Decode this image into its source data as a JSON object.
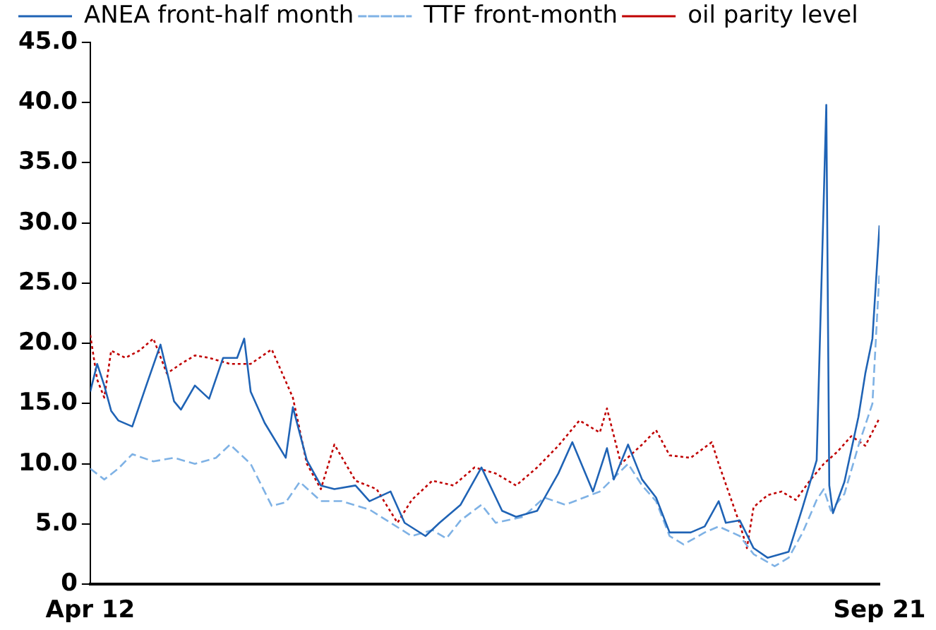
{
  "chart_data": {
    "type": "line",
    "xlim": [
      "2012-04",
      "2021-09"
    ],
    "xticks": [
      {
        "value": "2012-04",
        "label": "Apr 12"
      },
      {
        "value": "2021-09",
        "label": "Sep 21"
      }
    ],
    "ylim": [
      0,
      45
    ],
    "yticks": [
      0,
      {
        "value": 5,
        "label": "5.0"
      },
      {
        "value": 10,
        "label": "10.0"
      },
      {
        "value": 15,
        "label": "15.0"
      },
      {
        "value": 20,
        "label": "20.0"
      },
      {
        "value": 25,
        "label": "25.0"
      },
      {
        "value": 30,
        "label": "30.0"
      },
      {
        "value": 35,
        "label": "35.0"
      },
      {
        "value": 40,
        "label": "40.0"
      },
      {
        "value": 45,
        "label": "45.0"
      }
    ],
    "grid": false,
    "legend": "top",
    "marker": "none",
    "series": [
      {
        "name": "ANEA front-half month",
        "color": "#1f63b5",
        "line_style": "solid",
        "x": [
          "2012-04",
          "2012-05",
          "2012-06",
          "2012-07",
          "2012-08",
          "2012-10",
          "2012-12",
          "2013-02",
          "2013-04",
          "2013-05",
          "2013-07",
          "2013-09",
          "2013-11",
          "2014-01",
          "2014-02",
          "2014-03",
          "2014-05",
          "2014-08",
          "2014-09",
          "2014-11",
          "2015-01",
          "2015-03",
          "2015-06",
          "2015-08",
          "2015-11",
          "2016-01",
          "2016-04",
          "2016-06",
          "2016-09",
          "2016-12",
          "2017-03",
          "2017-05",
          "2017-08",
          "2017-11",
          "2018-01",
          "2018-04",
          "2018-06",
          "2018-07",
          "2018-09",
          "2018-11",
          "2019-01",
          "2019-03",
          "2019-06",
          "2019-08",
          "2019-10",
          "2019-11",
          "2020-01",
          "2020-03",
          "2020-05",
          "2020-08",
          "2020-10",
          "2020-12-01",
          "2021-01-12",
          "2021-01-25",
          "2021-02-10",
          "2021-04",
          "2021-06",
          "2021-07",
          "2021-08",
          "2021-09"
        ],
        "values": [
          16.0,
          18.3,
          16.5,
          14.4,
          13.6,
          13.1,
          16.5,
          19.9,
          15.2,
          14.5,
          16.5,
          15.4,
          18.8,
          18.8,
          20.4,
          16.0,
          13.4,
          10.5,
          14.7,
          10.3,
          8.2,
          7.9,
          8.2,
          6.9,
          7.7,
          5.1,
          4.0,
          5.1,
          6.6,
          9.7,
          6.1,
          5.6,
          6.1,
          9.2,
          11.8,
          7.7,
          11.3,
          8.7,
          11.6,
          8.7,
          7.2,
          4.3,
          4.3,
          4.8,
          6.9,
          5.1,
          5.3,
          3.0,
          2.2,
          2.7,
          6.4,
          10.3,
          39.8,
          8.2,
          5.9,
          8.5,
          13.9,
          17.5,
          20.4,
          29.8
        ]
      },
      {
        "name": "TTF front-month",
        "color": "#7fb2e5",
        "line_style": "dashed",
        "x": [
          "2012-04",
          "2012-06",
          "2012-08",
          "2012-10",
          "2013-01",
          "2013-04",
          "2013-07",
          "2013-10",
          "2013-12",
          "2014-03",
          "2014-06",
          "2014-08",
          "2014-10",
          "2015-01",
          "2015-04",
          "2015-08",
          "2015-11",
          "2016-02",
          "2016-05",
          "2016-07",
          "2016-09",
          "2016-12",
          "2017-02",
          "2017-06",
          "2017-09",
          "2017-12",
          "2018-05",
          "2018-09",
          "2018-11",
          "2019-01",
          "2019-03",
          "2019-05",
          "2019-08",
          "2019-10",
          "2020-01",
          "2020-03",
          "2020-06",
          "2020-08",
          "2020-10",
          "2020-12",
          "2021-01",
          "2021-02",
          "2021-04",
          "2021-06",
          "2021-08",
          "2021-09"
        ],
        "values": [
          9.6,
          8.7,
          9.6,
          10.8,
          10.2,
          10.5,
          10.0,
          10.5,
          11.6,
          10.0,
          6.5,
          6.8,
          8.5,
          6.9,
          6.9,
          6.2,
          5.1,
          4.0,
          4.5,
          3.8,
          5.3,
          6.6,
          5.1,
          5.6,
          7.2,
          6.6,
          7.7,
          10.0,
          8.2,
          6.9,
          4.0,
          3.3,
          4.3,
          4.8,
          4.0,
          2.5,
          1.5,
          2.2,
          4.3,
          7.0,
          7.9,
          6.1,
          7.5,
          11.5,
          15.0,
          26.0
        ]
      },
      {
        "name": "oil parity level",
        "color": "#c00000",
        "line_style": "dotted",
        "x": [
          "2012-04",
          "2012-05",
          "2012-06",
          "2012-07",
          "2012-09",
          "2012-11",
          "2013-01",
          "2013-03",
          "2013-05",
          "2013-07",
          "2013-09",
          "2013-12",
          "2014-03",
          "2014-06",
          "2014-09",
          "2014-11",
          "2015-01",
          "2015-03",
          "2015-06",
          "2015-09",
          "2015-12",
          "2016-02",
          "2016-05",
          "2016-08",
          "2016-11",
          "2017-02",
          "2017-05",
          "2017-08",
          "2017-11",
          "2018-02",
          "2018-05",
          "2018-06",
          "2018-08",
          "2018-11",
          "2019-01",
          "2019-03",
          "2019-06",
          "2019-09",
          "2019-10",
          "2020-01",
          "2020-02",
          "2020-03",
          "2020-05",
          "2020-07",
          "2020-09",
          "2020-11",
          "2021-01",
          "2021-03",
          "2021-05",
          "2021-07",
          "2021-09"
        ],
        "values": [
          20.7,
          17.0,
          15.5,
          19.4,
          18.8,
          19.4,
          20.4,
          17.5,
          18.3,
          19.0,
          18.8,
          18.3,
          18.3,
          19.5,
          15.5,
          10.0,
          7.9,
          11.6,
          8.6,
          7.9,
          5.1,
          7.0,
          8.6,
          8.2,
          9.7,
          9.2,
          8.2,
          9.7,
          11.5,
          13.6,
          12.6,
          14.6,
          10.0,
          11.6,
          12.8,
          10.7,
          10.5,
          11.8,
          10.0,
          5.0,
          3.0,
          6.4,
          7.4,
          7.7,
          7.0,
          8.6,
          10.0,
          11.0,
          12.3,
          11.5,
          13.8
        ]
      }
    ]
  }
}
